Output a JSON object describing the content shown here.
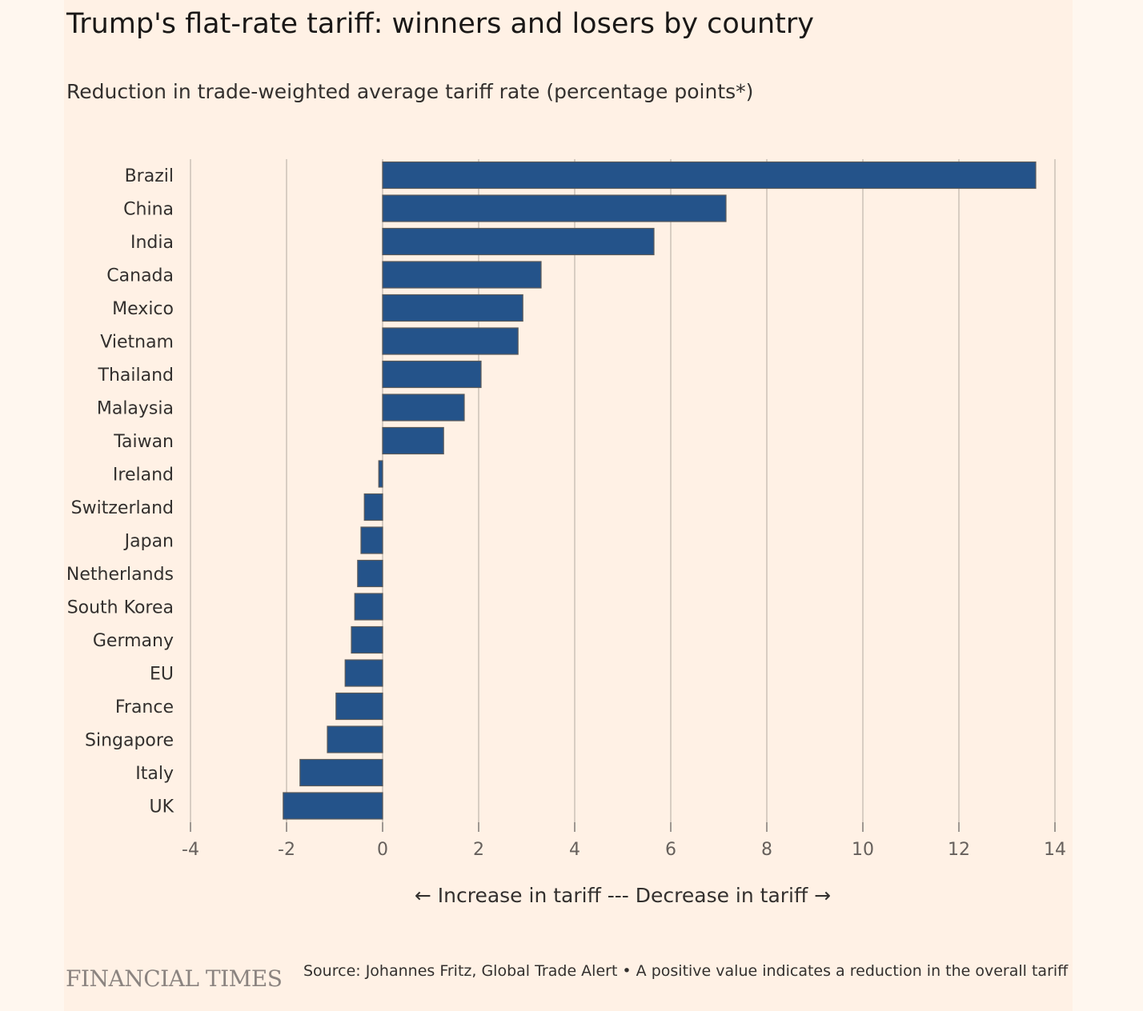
{
  "header": {
    "title": "Trump's flat-rate tariff: winners and losers by country",
    "subtitle": "Reduction in trade-weighted average tariff rate (percentage points*)"
  },
  "footer": {
    "logo": "FINANCIAL TIMES",
    "source": "Source: Johannes Fritz, Global Trade Alert • A positive value indicates a reduction in the overall tariff"
  },
  "colors": {
    "background": "#fff1e5",
    "bar": "#24538a",
    "bar_outline": "#5a5a5a",
    "grid": "#ccc1b7",
    "text": "#33302e"
  },
  "chart_data": {
    "type": "bar",
    "orientation": "horizontal",
    "title": "Trump's flat-rate tariff: winners and losers by country",
    "subtitle": "Reduction in trade-weighted average tariff rate (percentage points*)",
    "xlabel": "← Increase in tariff --- Decrease in tariff →",
    "ylabel": "",
    "categories": [
      "Brazil",
      "China",
      "India",
      "Canada",
      "Mexico",
      "Vietnam",
      "Thailand",
      "Malaysia",
      "Taiwan",
      "Ireland",
      "Switzerland",
      "Japan",
      "Netherlands",
      "South Korea",
      "Germany",
      "EU",
      "France",
      "Singapore",
      "Italy",
      "UK"
    ],
    "values": [
      13.6,
      7.15,
      5.65,
      3.3,
      2.92,
      2.82,
      2.05,
      1.7,
      1.27,
      -0.08,
      -0.38,
      -0.45,
      -0.52,
      -0.58,
      -0.65,
      -0.78,
      -0.97,
      -1.15,
      -1.72,
      -2.07
    ],
    "xlim": [
      -4,
      14
    ],
    "xticks": [
      -4,
      -2,
      0,
      2,
      4,
      6,
      8,
      10,
      12,
      14
    ],
    "grid": "vertical",
    "legend": "none"
  }
}
